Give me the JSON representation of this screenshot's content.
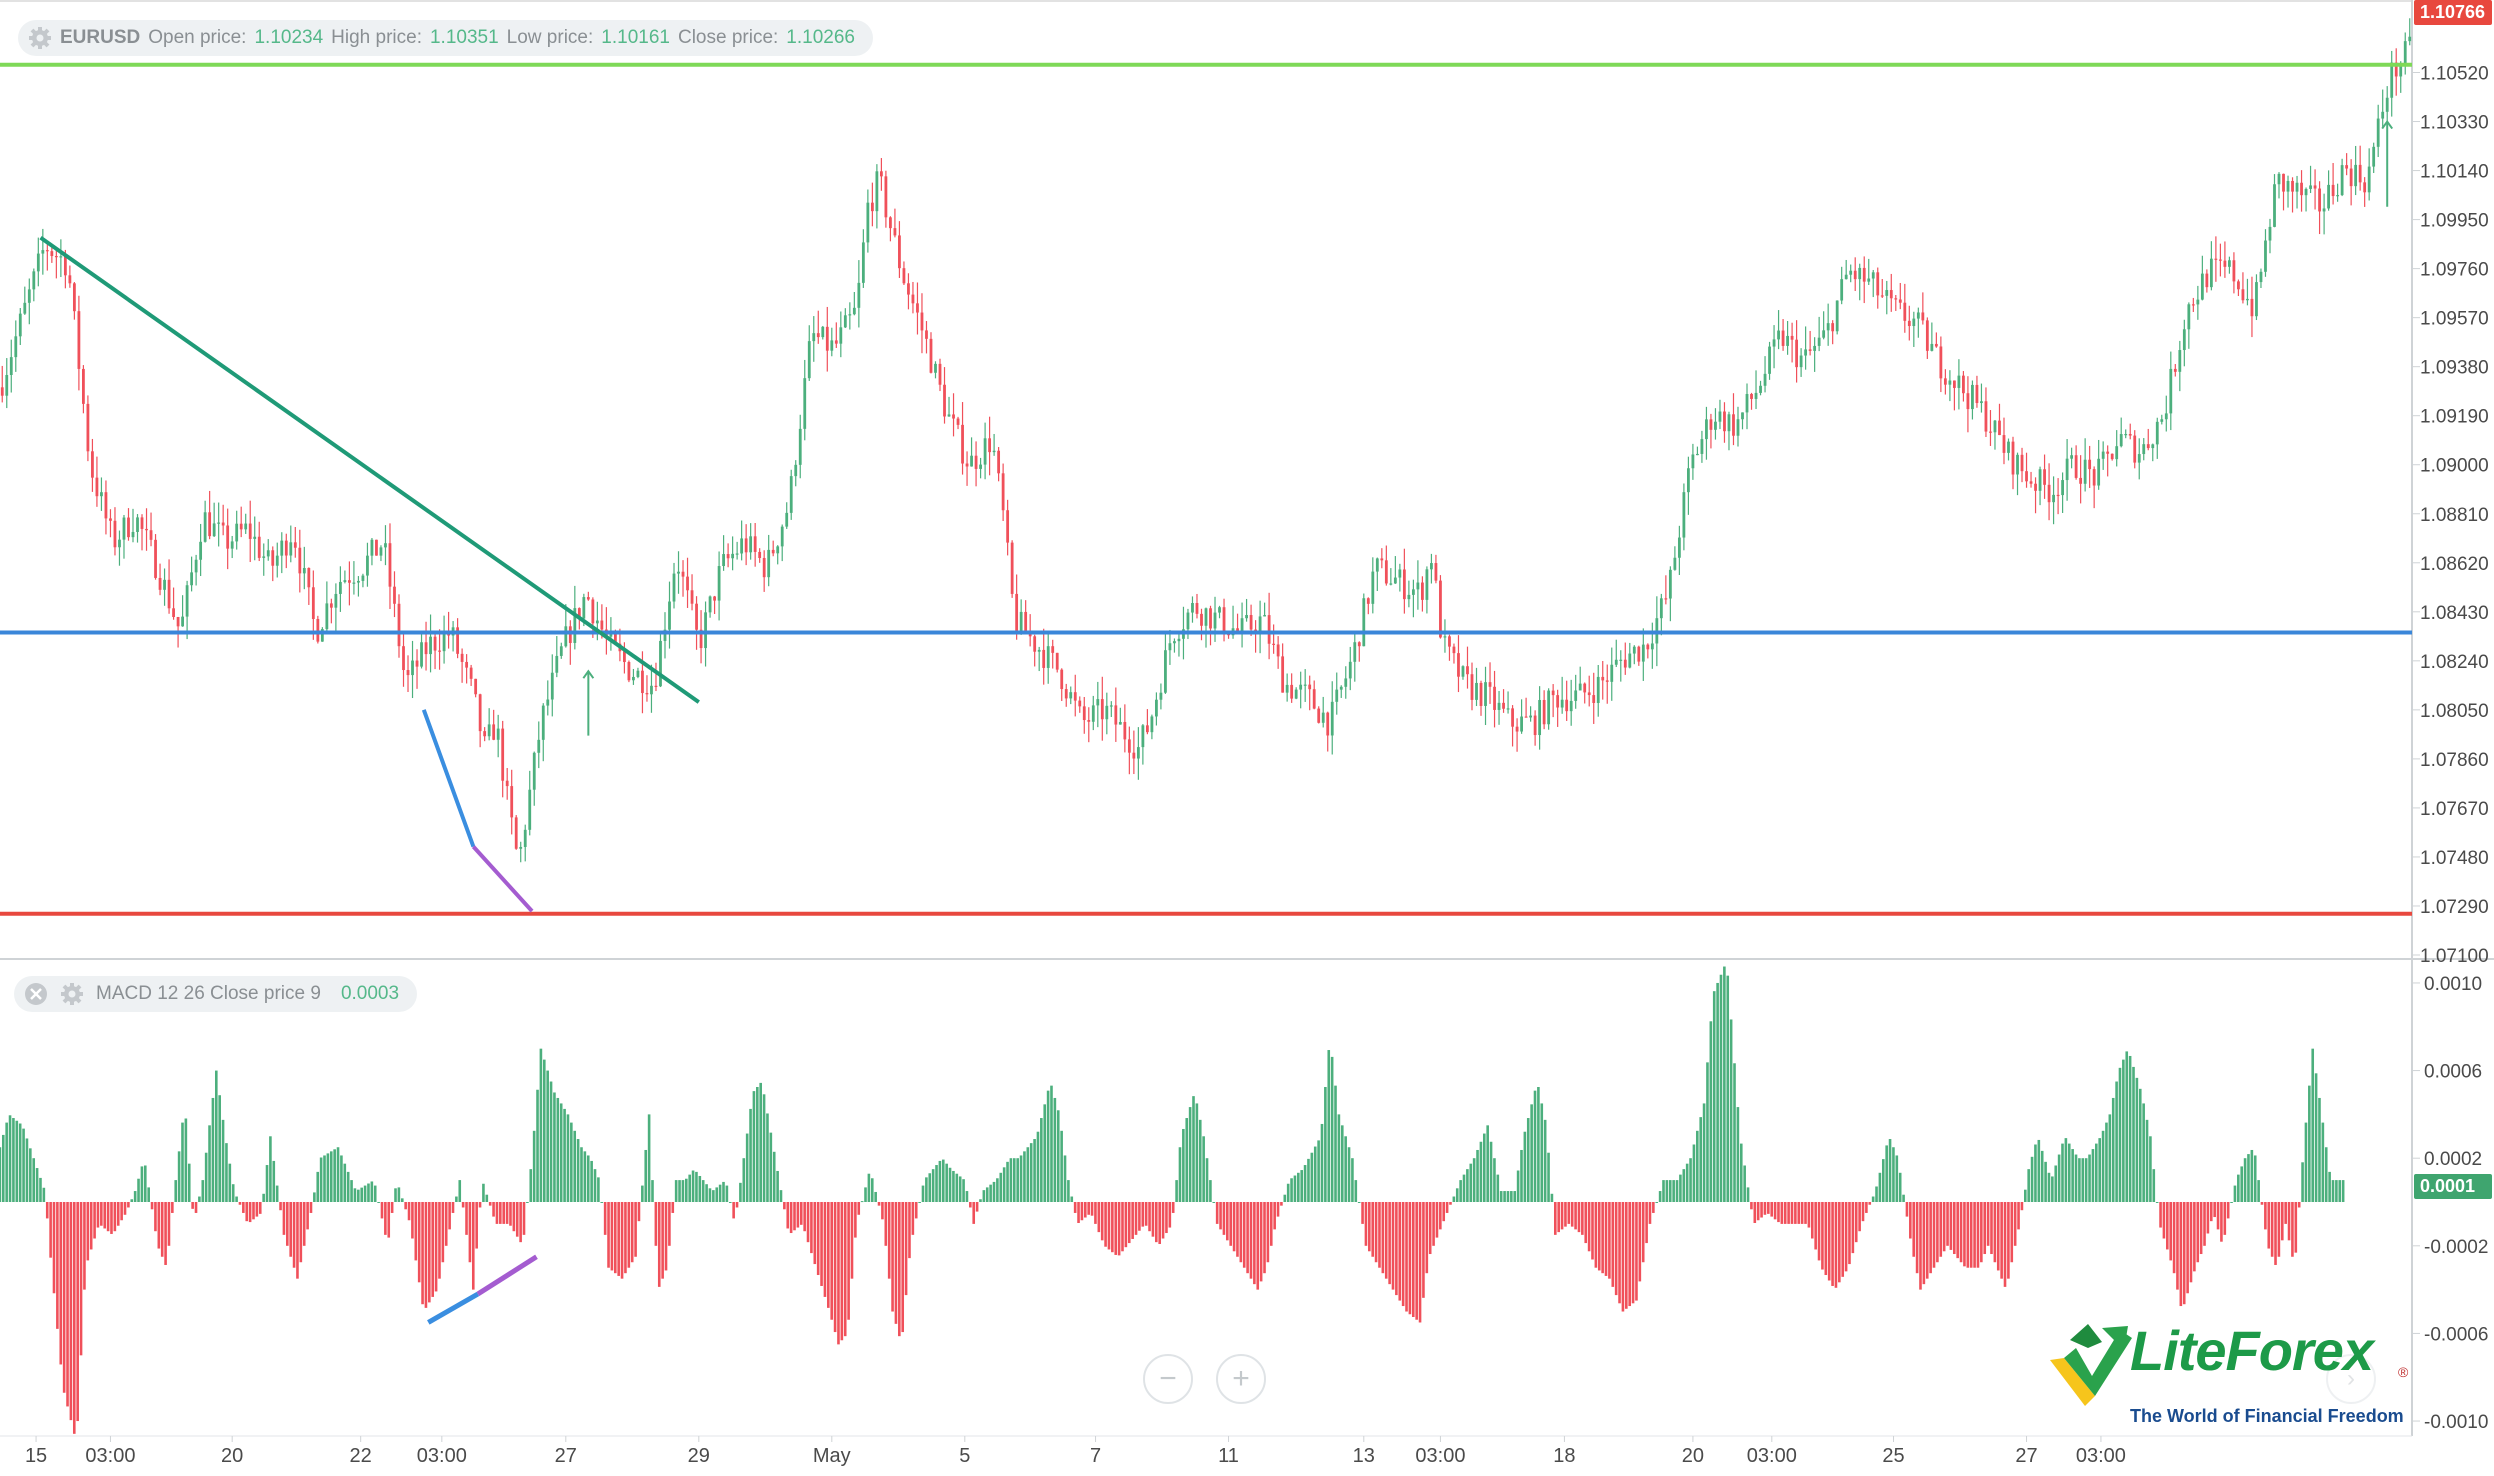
{
  "price_legend": {
    "symbol": "EURUSD",
    "open_label": "Open price:",
    "open": "1.10234",
    "high_label": "High price:",
    "high": "1.10351",
    "low_label": "Low price:",
    "low": "1.10161",
    "close_label": "Close price:",
    "close": "1.10266"
  },
  "macd_legend": {
    "label": "MACD 12 26 Close price 9",
    "value": "0.0003"
  },
  "price_axis_labels": [
    "1.10520",
    "1.10330",
    "1.10140",
    "1.09950",
    "1.09760",
    "1.09570",
    "1.09380",
    "1.09190",
    "1.09000",
    "1.08810",
    "1.08620",
    "1.08430",
    "1.08240",
    "1.08050",
    "1.07860",
    "1.07670",
    "1.07480",
    "1.07290",
    "1.07100"
  ],
  "macd_axis_labels": [
    "0.0010",
    "0.0006",
    "0.0002",
    "-0.0002",
    "-0.0006",
    "-0.0010"
  ],
  "time_axis_labels": [
    "15",
    "03:00",
    "20",
    "22",
    "03:00",
    "27",
    "29",
    "May",
    "5",
    "7",
    "11",
    "13",
    "03:00",
    "18",
    "20",
    "03:00",
    "25",
    "27",
    "03:00"
  ],
  "current_price_tag": "1.10766",
  "macd_current_tag": "0.0001",
  "zoom": {
    "minus": "−",
    "plus": "+"
  },
  "logo": {
    "name": "LiteForex",
    "tagline": "The World of Financial Freedom",
    "reg": "®"
  },
  "colors": {
    "bull": "#4caf7d",
    "bear": "#f0505a",
    "resistance": "#7ed957",
    "pivot": "#3a86d9",
    "support": "#e8483e",
    "trend": "#1f9a77",
    "div1": "#3a8ee0",
    "div2": "#a45cd0"
  },
  "chart_data": [
    {
      "type": "candlestick",
      "symbol": "EURUSD",
      "ylim": [
        1.071,
        1.1077
      ],
      "x_ticks": [
        "15",
        "03:00",
        "20",
        "22",
        "03:00",
        "27",
        "29",
        "May",
        "5",
        "7",
        "11",
        "13",
        "03:00",
        "18",
        "20",
        "03:00",
        "25",
        "27",
        "03:00"
      ],
      "close_path": [
        [
          0,
          1.093
        ],
        [
          20,
          1.0985
        ],
        [
          30,
          1.0978
        ],
        [
          40,
          1.09
        ],
        [
          50,
          1.087
        ],
        [
          60,
          1.088
        ],
        [
          70,
          1.086
        ],
        [
          80,
          1.0835
        ],
        [
          90,
          1.088
        ],
        [
          100,
          1.087
        ],
        [
          110,
          1.0875
        ],
        [
          120,
          1.086
        ],
        [
          130,
          1.0875
        ],
        [
          140,
          1.0835
        ],
        [
          150,
          1.0855
        ],
        [
          160,
          1.086
        ],
        [
          170,
          1.087
        ],
        [
          180,
          1.0815
        ],
        [
          190,
          1.083
        ],
        [
          200,
          1.0835
        ],
        [
          210,
          1.081
        ],
        [
          215,
          1.079
        ],
        [
          220,
          1.08
        ],
        [
          225,
          1.077
        ],
        [
          230,
          1.0745
        ],
        [
          240,
          1.08
        ],
        [
          250,
          1.083
        ],
        [
          260,
          1.085
        ],
        [
          270,
          1.083
        ],
        [
          280,
          1.082
        ],
        [
          290,
          1.0815
        ],
        [
          300,
          1.0865
        ],
        [
          310,
          1.083
        ],
        [
          320,
          1.086
        ],
        [
          330,
          1.087
        ],
        [
          340,
          1.086
        ],
        [
          350,
          1.0885
        ],
        [
          360,
          1.095
        ],
        [
          370,
          1.0945
        ],
        [
          380,
          1.096
        ],
        [
          385,
          1.1
        ],
        [
          390,
          1.101
        ],
        [
          400,
          1.0975
        ],
        [
          410,
          1.095
        ],
        [
          420,
          1.092
        ],
        [
          430,
          1.09
        ],
        [
          440,
          1.091
        ],
        [
          445,
          1.088
        ],
        [
          450,
          1.084
        ],
        [
          460,
          1.083
        ],
        [
          470,
          1.082
        ],
        [
          480,
          1.08
        ],
        [
          490,
          1.0805
        ],
        [
          500,
          1.0795
        ],
        [
          505,
          1.079
        ],
        [
          510,
          1.08
        ],
        [
          520,
          1.0835
        ],
        [
          530,
          1.0845
        ],
        [
          540,
          1.084
        ],
        [
          550,
          1.0835
        ],
        [
          560,
          1.084
        ],
        [
          570,
          1.0815
        ],
        [
          580,
          1.081
        ],
        [
          590,
          1.08
        ],
        [
          600,
          1.0825
        ],
        [
          610,
          1.086
        ],
        [
          620,
          1.0855
        ],
        [
          630,
          1.085
        ],
        [
          635,
          1.0865
        ],
        [
          640,
          1.083
        ],
        [
          650,
          1.0815
        ],
        [
          660,
          1.081
        ],
        [
          670,
          1.08
        ],
        [
          680,
          1.08
        ],
        [
          690,
          1.081
        ],
        [
          700,
          1.081
        ],
        [
          710,
          1.0815
        ],
        [
          720,
          1.0825
        ],
        [
          730,
          1.083
        ],
        [
          740,
          1.085
        ],
        [
          750,
          1.09
        ],
        [
          760,
          1.092
        ],
        [
          770,
          1.0915
        ],
        [
          780,
          1.093
        ],
        [
          790,
          1.095
        ],
        [
          800,
          1.094
        ],
        [
          810,
          1.095
        ],
        [
          820,
          1.0975
        ],
        [
          830,
          1.097
        ],
        [
          840,
          1.096
        ],
        [
          850,
          1.0955
        ],
        [
          860,
          1.094
        ],
        [
          870,
          1.093
        ],
        [
          880,
          1.092
        ],
        [
          890,
          1.0905
        ],
        [
          900,
          1.0895
        ],
        [
          910,
          1.089
        ],
        [
          920,
          1.09
        ],
        [
          930,
          1.0895
        ],
        [
          940,
          1.091
        ],
        [
          950,
          1.0905
        ],
        [
          960,
          1.092
        ],
        [
          970,
          1.096
        ],
        [
          980,
          1.0975
        ],
        [
          990,
          1.0975
        ],
        [
          1000,
          1.096
        ],
        [
          1010,
          1.101
        ],
        [
          1020,
          1.1005
        ],
        [
          1030,
          1.1
        ],
        [
          1040,
          1.1015
        ],
        [
          1050,
          1.101
        ],
        [
          1060,
          1.105
        ],
        [
          1070,
          1.1062
        ]
      ],
      "horizontal_levels": [
        {
          "price": 1.1055,
          "color": "#7ed957"
        },
        {
          "price": 1.0835,
          "color": "#3a86d9"
        },
        {
          "price": 1.0726,
          "color": "#e8483e"
        }
      ],
      "trendlines": [
        {
          "from": [
            18,
            1.0988
          ],
          "to": [
            310,
            1.0808
          ],
          "color": "#1f9a77"
        },
        {
          "from": [
            188,
            1.0805
          ],
          "to": [
            210,
            1.0752
          ],
          "color": "#3a8ee0"
        },
        {
          "from": [
            210,
            1.0752
          ],
          "to": [
            236,
            1.0727
          ],
          "color": "#a45cd0"
        }
      ],
      "last_price": 1.10766
    },
    {
      "type": "histogram",
      "name": "MACD 12 26 Close price 9",
      "ylim": [
        -0.00105,
        0.00105
      ],
      "y_ticks": [
        0.001,
        0.0006,
        0.0002,
        -0.0002,
        -0.0006,
        -0.001
      ],
      "path": [
        [
          0,
          0.00025
        ],
        [
          4,
          0.0004
        ],
        [
          10,
          0.00035
        ],
        [
          20,
          5e-05
        ],
        [
          22,
          -0.0002
        ],
        [
          28,
          -0.00085
        ],
        [
          34,
          -0.0011
        ],
        [
          38,
          -0.0003
        ],
        [
          44,
          -0.0001
        ],
        [
          50,
          -0.00015
        ],
        [
          56,
          -5e-05
        ],
        [
          60,
          5e-05
        ],
        [
          64,
          0.0002
        ],
        [
          70,
          -0.0002
        ],
        [
          74,
          -0.0003
        ],
        [
          78,
          0.0001
        ],
        [
          82,
          0.00045
        ],
        [
          86,
          -0.0001
        ],
        [
          90,
          0.0001
        ],
        [
          96,
          0.0006
        ],
        [
          100,
          0.0003
        ],
        [
          104,
          5e-05
        ],
        [
          110,
          -0.0001
        ],
        [
          116,
          -5e-05
        ],
        [
          120,
          0.0003
        ],
        [
          126,
          -0.00015
        ],
        [
          132,
          -0.00035
        ],
        [
          138,
          -5e-05
        ],
        [
          142,
          0.0002
        ],
        [
          150,
          0.00025
        ],
        [
          158,
          5e-05
        ],
        [
          166,
          0.0001
        ],
        [
          172,
          -0.0002
        ],
        [
          176,
          0.0001
        ],
        [
          182,
          -0.0001
        ],
        [
          188,
          -0.0005
        ],
        [
          194,
          -0.0004
        ],
        [
          198,
          -0.0002
        ],
        [
          204,
          0.0001
        ],
        [
          210,
          -0.0004
        ],
        [
          214,
          0.0001
        ],
        [
          220,
          -0.0001
        ],
        [
          226,
          -0.0001
        ],
        [
          232,
          -0.0002
        ],
        [
          236,
          0.0002
        ],
        [
          240,
          0.0007
        ],
        [
          246,
          0.0005
        ],
        [
          252,
          0.0004
        ],
        [
          258,
          0.00025
        ],
        [
          262,
          0.0002
        ],
        [
          266,
          0.0001
        ],
        [
          270,
          -0.0003
        ],
        [
          276,
          -0.00035
        ],
        [
          282,
          -0.00025
        ],
        [
          288,
          0.0004
        ],
        [
          292,
          -0.0004
        ],
        [
          296,
          -0.0003
        ],
        [
          300,
          0.0001
        ],
        [
          304,
          0.0001
        ],
        [
          308,
          0.00015
        ],
        [
          316,
          5e-05
        ],
        [
          322,
          0.0001
        ],
        [
          326,
          -0.0001
        ],
        [
          330,
          0.0002
        ],
        [
          334,
          0.0005
        ],
        [
          338,
          0.00055
        ],
        [
          344,
          0.0002
        ],
        [
          350,
          -0.00015
        ],
        [
          356,
          -0.0001
        ],
        [
          362,
          -0.0003
        ],
        [
          368,
          -0.0005
        ],
        [
          372,
          -0.00065
        ],
        [
          376,
          -0.0006
        ],
        [
          380,
          -0.0001
        ],
        [
          386,
          0.00015
        ],
        [
          392,
          -0.0001
        ],
        [
          396,
          -0.0005
        ],
        [
          400,
          -0.00065
        ],
        [
          404,
          -0.0002
        ],
        [
          410,
          0.0001
        ],
        [
          418,
          0.0002
        ],
        [
          422,
          0.00015
        ],
        [
          428,
          0.0001
        ],
        [
          432,
          -0.0001
        ],
        [
          436,
          5e-05
        ],
        [
          442,
          0.0001
        ],
        [
          448,
          0.0002
        ],
        [
          452,
          0.0002
        ],
        [
          460,
          0.0003
        ],
        [
          466,
          0.00055
        ],
        [
          470,
          0.0004
        ],
        [
          474,
          0.0001
        ],
        [
          478,
          -0.0001
        ],
        [
          484,
          -5e-05
        ],
        [
          490,
          -0.0002
        ],
        [
          496,
          -0.00025
        ],
        [
          504,
          -0.00015
        ],
        [
          508,
          -0.0001
        ],
        [
          514,
          -0.0002
        ],
        [
          520,
          -0.0001
        ],
        [
          524,
          0.0003
        ],
        [
          530,
          0.0005
        ],
        [
          534,
          0.0003
        ],
        [
          540,
          -0.0001
        ],
        [
          546,
          -0.0002
        ],
        [
          552,
          -0.0003
        ],
        [
          558,
          -0.0004
        ],
        [
          562,
          -0.0003
        ],
        [
          566,
          -0.0001
        ],
        [
          572,
          0.0001
        ],
        [
          578,
          0.00015
        ],
        [
          586,
          0.0003
        ],
        [
          590,
          0.00075
        ],
        [
          594,
          0.0004
        ],
        [
          600,
          0.0002
        ],
        [
          606,
          -0.0002
        ],
        [
          612,
          -0.0003
        ],
        [
          618,
          -0.0004
        ],
        [
          624,
          -0.0005
        ],
        [
          630,
          -0.00055
        ],
        [
          634,
          -0.00025
        ],
        [
          640,
          -0.0001
        ],
        [
          648,
          0.0001
        ],
        [
          654,
          0.0002
        ],
        [
          660,
          0.00035
        ],
        [
          666,
          5e-05
        ],
        [
          672,
          5e-05
        ],
        [
          676,
          0.0003
        ],
        [
          682,
          0.00055
        ],
        [
          686,
          0.00035
        ],
        [
          690,
          -0.00015
        ],
        [
          696,
          -0.0001
        ],
        [
          702,
          -0.00015
        ],
        [
          708,
          -0.0003
        ],
        [
          714,
          -0.00035
        ],
        [
          720,
          -0.0005
        ],
        [
          726,
          -0.00045
        ],
        [
          732,
          -0.0001
        ],
        [
          738,
          0.0001
        ],
        [
          744,
          0.0001
        ],
        [
          750,
          0.0002
        ],
        [
          756,
          0.00045
        ],
        [
          760,
          0.00095
        ],
        [
          766,
          0.0011
        ],
        [
          772,
          0.0003
        ],
        [
          778,
          -0.0001
        ],
        [
          784,
          -5e-05
        ],
        [
          790,
          -0.0001
        ],
        [
          796,
          -0.0001
        ],
        [
          802,
          -0.0001
        ],
        [
          808,
          -0.0003
        ],
        [
          814,
          -0.0004
        ],
        [
          820,
          -0.0003
        ],
        [
          826,
          -0.0001
        ],
        [
          832,
          5e-05
        ],
        [
          838,
          0.0003
        ],
        [
          842,
          0.0002
        ],
        [
          848,
          -0.0002
        ],
        [
          852,
          -0.0004
        ],
        [
          858,
          -0.0003
        ],
        [
          864,
          -0.0002
        ],
        [
          872,
          -0.0003
        ],
        [
          878,
          -0.0003
        ],
        [
          882,
          -0.0002
        ],
        [
          886,
          -0.0003
        ],
        [
          890,
          -0.0004
        ],
        [
          896,
          -0.0001
        ],
        [
          900,
          0.00015
        ],
        [
          904,
          0.0003
        ],
        [
          910,
          0.0001
        ],
        [
          916,
          0.0003
        ],
        [
          922,
          0.0002
        ],
        [
          926,
          0.0002
        ],
        [
          932,
          0.0003
        ],
        [
          936,
          0.0004
        ],
        [
          940,
          0.0006
        ],
        [
          944,
          0.0007
        ],
        [
          950,
          0.0005
        ],
        [
          954,
          0.0003
        ],
        [
          958,
          -0.0001
        ],
        [
          964,
          -0.0003
        ],
        [
          968,
          -0.0005
        ],
        [
          974,
          -0.0003
        ],
        [
          978,
          -0.0002
        ],
        [
          982,
          -5e-05
        ],
        [
          986,
          -0.0002
        ],
        [
          992,
          0.0001
        ],
        [
          996,
          0.0002
        ],
        [
          1000,
          0.00025
        ],
        [
          1006,
          -0.0002
        ],
        [
          1010,
          -0.0003
        ],
        [
          1014,
          -0.0001
        ],
        [
          1018,
          -0.0003
        ],
        [
          1022,
          0.00025
        ],
        [
          1026,
          0.0007
        ],
        [
          1030,
          0.0004
        ],
        [
          1034,
          0.0001
        ]
      ],
      "trendlines": [
        {
          "from": [
            190,
            -0.00055
          ],
          "to": [
            212,
            -0.00042
          ],
          "color": "#3a8ee0"
        },
        {
          "from": [
            212,
            -0.00042
          ],
          "to": [
            238,
            -0.00025
          ],
          "color": "#a45cd0"
        }
      ],
      "last_value": 0.0001
    }
  ]
}
